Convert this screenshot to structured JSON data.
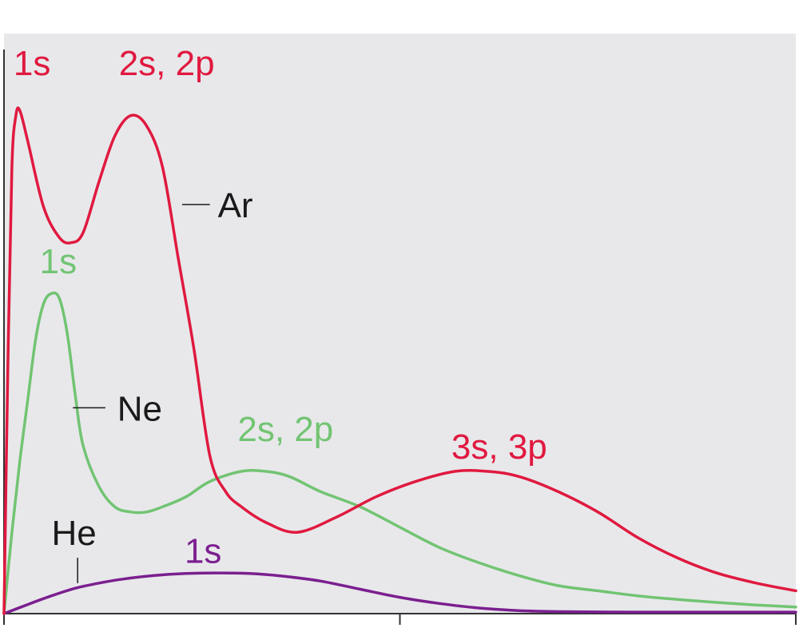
{
  "chart_data": {
    "type": "line",
    "title": "",
    "xlabel": "",
    "ylabel": "",
    "xlim": [
      0,
      1
    ],
    "ylim": [
      0,
      1
    ],
    "grid": false,
    "colors": {
      "background": "#e8e8eb",
      "axis": "#333333",
      "Ar": "#e0193f",
      "Ne": "#72c472",
      "He": "#7b1f8f",
      "label": "#1a1a1a"
    },
    "series": [
      {
        "name": "Ar",
        "color": "#e0193f",
        "points": [
          [
            0.0,
            0.0
          ],
          [
            0.005,
            0.5
          ],
          [
            0.01,
            0.88
          ],
          [
            0.015,
            0.98
          ],
          [
            0.02,
            0.99
          ],
          [
            0.03,
            0.93
          ],
          [
            0.05,
            0.8
          ],
          [
            0.07,
            0.74
          ],
          [
            0.085,
            0.73
          ],
          [
            0.1,
            0.75
          ],
          [
            0.12,
            0.85
          ],
          [
            0.14,
            0.94
          ],
          [
            0.16,
            0.98
          ],
          [
            0.18,
            0.96
          ],
          [
            0.2,
            0.88
          ],
          [
            0.22,
            0.7
          ],
          [
            0.24,
            0.52
          ],
          [
            0.26,
            0.31
          ],
          [
            0.28,
            0.24
          ],
          [
            0.3,
            0.21
          ],
          [
            0.33,
            0.18
          ],
          [
            0.37,
            0.16
          ],
          [
            0.42,
            0.19
          ],
          [
            0.47,
            0.23
          ],
          [
            0.52,
            0.26
          ],
          [
            0.57,
            0.28
          ],
          [
            0.61,
            0.28
          ],
          [
            0.65,
            0.27
          ],
          [
            0.7,
            0.24
          ],
          [
            0.75,
            0.2
          ],
          [
            0.8,
            0.15
          ],
          [
            0.85,
            0.11
          ],
          [
            0.9,
            0.08
          ],
          [
            0.95,
            0.06
          ],
          [
            1.0,
            0.045
          ]
        ]
      },
      {
        "name": "Ne",
        "color": "#72c472",
        "points": [
          [
            0.0,
            0.0
          ],
          [
            0.01,
            0.16
          ],
          [
            0.02,
            0.3
          ],
          [
            0.03,
            0.42
          ],
          [
            0.04,
            0.54
          ],
          [
            0.05,
            0.61
          ],
          [
            0.06,
            0.63
          ],
          [
            0.07,
            0.62
          ],
          [
            0.08,
            0.55
          ],
          [
            0.09,
            0.43
          ],
          [
            0.1,
            0.33
          ],
          [
            0.12,
            0.25
          ],
          [
            0.14,
            0.21
          ],
          [
            0.16,
            0.2
          ],
          [
            0.18,
            0.2
          ],
          [
            0.2,
            0.21
          ],
          [
            0.23,
            0.23
          ],
          [
            0.26,
            0.26
          ],
          [
            0.3,
            0.28
          ],
          [
            0.33,
            0.28
          ],
          [
            0.36,
            0.27
          ],
          [
            0.4,
            0.24
          ],
          [
            0.45,
            0.21
          ],
          [
            0.5,
            0.17
          ],
          [
            0.55,
            0.13
          ],
          [
            0.6,
            0.1
          ],
          [
            0.65,
            0.075
          ],
          [
            0.7,
            0.055
          ],
          [
            0.75,
            0.045
          ],
          [
            0.8,
            0.035
          ],
          [
            0.85,
            0.028
          ],
          [
            0.9,
            0.022
          ],
          [
            0.95,
            0.017
          ],
          [
            1.0,
            0.013
          ]
        ]
      },
      {
        "name": "He",
        "color": "#7b1f8f",
        "points": [
          [
            0.0,
            0.0
          ],
          [
            0.03,
            0.018
          ],
          [
            0.06,
            0.035
          ],
          [
            0.09,
            0.05
          ],
          [
            0.12,
            0.06
          ],
          [
            0.15,
            0.068
          ],
          [
            0.19,
            0.075
          ],
          [
            0.23,
            0.079
          ],
          [
            0.27,
            0.08
          ],
          [
            0.31,
            0.079
          ],
          [
            0.35,
            0.074
          ],
          [
            0.4,
            0.064
          ],
          [
            0.45,
            0.048
          ],
          [
            0.5,
            0.032
          ],
          [
            0.55,
            0.02
          ],
          [
            0.6,
            0.011
          ],
          [
            0.65,
            0.006
          ],
          [
            0.7,
            0.004
          ],
          [
            0.8,
            0.003
          ],
          [
            0.9,
            0.003
          ],
          [
            1.0,
            0.003
          ]
        ]
      }
    ],
    "annotations": [
      {
        "text": "1s",
        "series": "Ar",
        "x": 0.012,
        "y": 1.06,
        "anchor": "start"
      },
      {
        "text": "2s, 2p",
        "series": "Ar",
        "x": 0.145,
        "y": 1.06,
        "anchor": "start"
      },
      {
        "text": "Ar",
        "series": "label",
        "x": 0.27,
        "y": 0.78,
        "anchor": "start",
        "leader": [
          0.225,
          0.805,
          0.26,
          0.805
        ]
      },
      {
        "text": "1s",
        "series": "Ne",
        "x": 0.045,
        "y": 0.67,
        "anchor": "start"
      },
      {
        "text": "Ne",
        "series": "label",
        "x": 0.143,
        "y": 0.38,
        "anchor": "start",
        "leader": [
          0.087,
          0.405,
          0.128,
          0.405
        ]
      },
      {
        "text": "2s, 2p",
        "series": "Ne",
        "x": 0.295,
        "y": 0.34,
        "anchor": "start"
      },
      {
        "text": "3s, 3p",
        "series": "Ar",
        "x": 0.565,
        "y": 0.305,
        "anchor": "start"
      },
      {
        "text": "He",
        "series": "label",
        "x": 0.06,
        "y": 0.135,
        "anchor": "start",
        "leader": [
          0.093,
          0.06,
          0.093,
          0.11
        ]
      },
      {
        "text": "1s",
        "series": "He",
        "x": 0.228,
        "y": 0.1,
        "anchor": "start"
      }
    ]
  }
}
